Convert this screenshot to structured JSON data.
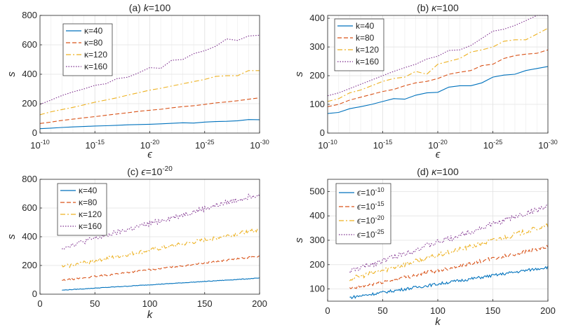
{
  "chart_data": [
    {
      "type": "line",
      "title_prefix": "(a) ",
      "title_var": "k",
      "title_rest": "=100",
      "xlabel": "ϵ",
      "ylabel": "s",
      "x_scale": "log-reversed",
      "x": [
        1e-10,
        1e-11,
        1e-12,
        1e-13,
        1e-14,
        1e-15,
        1e-16,
        1e-17,
        1e-18,
        1e-19,
        1e-20,
        1e-21,
        1e-22,
        1e-23,
        1e-24,
        1e-25,
        1e-26,
        1e-27,
        1e-28,
        1e-29,
        1e-30
      ],
      "xticks": [
        {
          "base": "10",
          "exp": "-10"
        },
        {
          "base": "10",
          "exp": "-15"
        },
        {
          "base": "10",
          "exp": "-20"
        },
        {
          "base": "10",
          "exp": "-25"
        },
        {
          "base": "10",
          "exp": "-30"
        }
      ],
      "ylim": [
        0,
        800
      ],
      "yticks": [
        "0",
        "200",
        "400",
        "600",
        "800"
      ],
      "grid": true,
      "legend_position": "top-left",
      "series": [
        {
          "name": "κ=40",
          "color": "#0072BD",
          "dash": "solid",
          "values": [
            30,
            34,
            38,
            42,
            45,
            48,
            50,
            53,
            56,
            58,
            60,
            63,
            66,
            70,
            68,
            75,
            78,
            80,
            84,
            92,
            91
          ]
        },
        {
          "name": "κ=80",
          "color": "#D95319",
          "dash": "dashed",
          "values": [
            65,
            75,
            86,
            95,
            104,
            112,
            121,
            130,
            138,
            148,
            155,
            162,
            172,
            180,
            186,
            195,
            205,
            212,
            220,
            230,
            240
          ]
        },
        {
          "name": "κ=120",
          "color": "#EDB120",
          "dash": "dashdot",
          "values": [
            125,
            145,
            160,
            175,
            192,
            210,
            225,
            240,
            258,
            275,
            292,
            305,
            320,
            335,
            350,
            365,
            385,
            390,
            390,
            425,
            425
          ]
        },
        {
          "name": "κ=160",
          "color": "#7E2F8E",
          "dash": "dotted",
          "values": [
            195,
            225,
            255,
            280,
            300,
            325,
            335,
            370,
            380,
            410,
            445,
            440,
            495,
            500,
            540,
            560,
            590,
            640,
            630,
            660,
            665
          ]
        }
      ]
    },
    {
      "type": "line",
      "title_prefix": "(b) ",
      "title_var": "κ",
      "title_rest": "=100",
      "xlabel": "ϵ",
      "ylabel": "s",
      "x_scale": "log-reversed",
      "x": [
        1e-10,
        1e-11,
        1e-12,
        1e-13,
        1e-14,
        1e-15,
        1e-16,
        1e-17,
        1e-18,
        1e-19,
        1e-20,
        1e-21,
        1e-22,
        1e-23,
        1e-24,
        1e-25,
        1e-26,
        1e-27,
        1e-28,
        1e-29,
        1e-30
      ],
      "xticks": [
        {
          "base": "10",
          "exp": "-10"
        },
        {
          "base": "10",
          "exp": "-15"
        },
        {
          "base": "10",
          "exp": "-20"
        },
        {
          "base": "10",
          "exp": "-25"
        },
        {
          "base": "10",
          "exp": "-30"
        }
      ],
      "ylim": [
        0,
        410
      ],
      "yticks": [
        "0",
        "100",
        "200",
        "300",
        "400"
      ],
      "grid": true,
      "legend_position": "top-left",
      "series": [
        {
          "name": "k=40",
          "color": "#0072BD",
          "dash": "solid",
          "values": [
            68,
            72,
            85,
            92,
            100,
            110,
            120,
            118,
            132,
            140,
            142,
            160,
            165,
            165,
            175,
            195,
            202,
            205,
            218,
            225,
            232
          ]
        },
        {
          "name": "k=80",
          "color": "#D95319",
          "dash": "dashed",
          "values": [
            92,
            100,
            115,
            125,
            135,
            145,
            152,
            165,
            175,
            180,
            190,
            205,
            212,
            218,
            235,
            240,
            260,
            270,
            275,
            278,
            290
          ]
        },
        {
          "name": "k=120",
          "color": "#EDB120",
          "dash": "dashdot",
          "values": [
            110,
            120,
            140,
            150,
            165,
            180,
            190,
            195,
            215,
            205,
            240,
            250,
            260,
            282,
            290,
            300,
            320,
            325,
            325,
            345,
            365
          ]
        },
        {
          "name": "k=160",
          "color": "#7E2F8E",
          "dash": "dotted",
          "values": [
            130,
            140,
            155,
            170,
            185,
            200,
            215,
            228,
            240,
            258,
            268,
            288,
            290,
            305,
            330,
            355,
            362,
            375,
            392,
            410,
            410
          ]
        }
      ]
    },
    {
      "type": "line",
      "title_prefix": "(c) ",
      "title_var": "ϵ",
      "title_rest": "=10",
      "title_exp": "-20",
      "xlabel": "k",
      "ylabel": "s",
      "x_scale": "linear",
      "xlim": [
        0,
        200
      ],
      "xticks": [
        "0",
        "50",
        "100",
        "150",
        "200"
      ],
      "x_start": 20,
      "x_end": 200,
      "ylim": [
        0,
        800
      ],
      "yticks": [
        "0",
        "200",
        "400",
        "600",
        "800"
      ],
      "grid": true,
      "legend_position": "top-left",
      "series": [
        {
          "name": "κ=40",
          "color": "#0072BD",
          "dash": "solid",
          "start": 28,
          "end": 112,
          "noise": 2
        },
        {
          "name": "κ=80",
          "color": "#D95319",
          "dash": "dashed",
          "start": 95,
          "end": 265,
          "noise": 6
        },
        {
          "name": "κ=120",
          "color": "#EDB120",
          "dash": "dashdot",
          "start": 190,
          "end": 450,
          "noise": 14
        },
        {
          "name": "κ=160",
          "color": "#7E2F8E",
          "dash": "dotted",
          "start": 325,
          "end": 700,
          "noise": 18
        }
      ]
    },
    {
      "type": "line",
      "title_prefix": "(d) ",
      "title_var": "κ",
      "title_rest": "=100",
      "xlabel": "k",
      "ylabel": "s",
      "x_scale": "linear",
      "xlim": [
        0,
        200
      ],
      "xticks": [
        "0",
        "50",
        "100",
        "150",
        "200"
      ],
      "x_start": 20,
      "x_end": 200,
      "ylim": [
        50,
        550
      ],
      "yticks": [
        "100",
        "200",
        "300",
        "400",
        "500"
      ],
      "grid": true,
      "legend_position": "top-left",
      "series": [
        {
          "name_var": "ϵ",
          "name_rest": "=10",
          "name_exp": "-10",
          "color": "#0072BD",
          "dash": "solid",
          "start": 65,
          "end": 190,
          "noise": 6
        },
        {
          "name_var": "ϵ",
          "name_rest": "=10",
          "name_exp": "-15",
          "color": "#D95319",
          "dash": "dashed",
          "start": 100,
          "end": 272,
          "noise": 8
        },
        {
          "name_var": "ϵ",
          "name_rest": "=10",
          "name_exp": "-20",
          "color": "#EDB120",
          "dash": "dashdot",
          "start": 140,
          "end": 360,
          "noise": 10
        },
        {
          "name_var": "ϵ",
          "name_rest": "=10",
          "name_exp": "-25",
          "color": "#7E2F8E",
          "dash": "dotted",
          "start": 172,
          "end": 440,
          "noise": 12
        }
      ]
    }
  ]
}
